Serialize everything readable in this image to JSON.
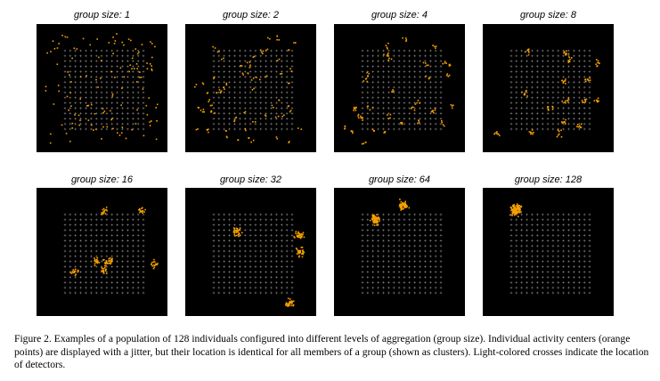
{
  "figure": {
    "panels": [
      {
        "title": "group size: 1"
      },
      {
        "title": "group size: 2"
      },
      {
        "title": "group size: 4"
      },
      {
        "title": "group size: 8"
      },
      {
        "title": "group size: 16"
      },
      {
        "title": "group size: 32"
      },
      {
        "title": "group size: 64"
      },
      {
        "title": "group size: 128"
      }
    ],
    "caption": "Figure 2. Examples of a population of 128 individuals configured into different levels of aggregation (group size). Individual activity centers (orange points) are displayed with a jitter, but their location is identical for all members of a group (shown as clusters). Light-colored crosses indicate the location of detectors.",
    "colors": {
      "background": "#000000",
      "points": "#f5a000",
      "detectors": "#c8c8c8"
    }
  }
}
